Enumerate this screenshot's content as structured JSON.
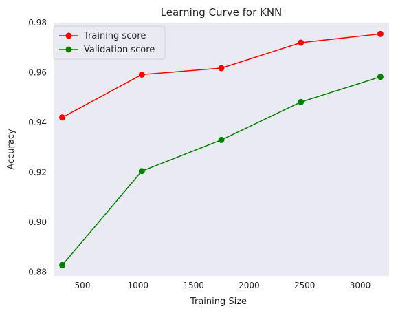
{
  "chart_data": {
    "type": "line",
    "title": "Learning Curve for KNN",
    "xlabel": "Training Size",
    "ylabel": "Accuracy",
    "xlim": [
      240,
      3260
    ],
    "ylim": [
      0.8785,
      0.98
    ],
    "xticks": [
      500,
      1000,
      1500,
      2000,
      2500,
      3000
    ],
    "yticks": [
      0.88,
      0.9,
      0.92,
      0.94,
      0.96,
      0.98
    ],
    "ytick_labels": [
      "0.88",
      "0.90",
      "0.92",
      "0.94",
      "0.96",
      "0.98"
    ],
    "grid": false,
    "legend_position": "upper-left",
    "series": [
      {
        "name": "Training score",
        "color": "#ff0000",
        "marker": "circle",
        "x": [
          318,
          1034,
          1750,
          2466,
          3182
        ],
        "y": [
          0.942,
          0.9592,
          0.9618,
          0.972,
          0.9755
        ]
      },
      {
        "name": "Validation score",
        "color": "#008000",
        "marker": "circle",
        "x": [
          318,
          1034,
          1750,
          2466,
          3182
        ],
        "y": [
          0.8828,
          0.9205,
          0.933,
          0.9482,
          0.9583
        ]
      }
    ]
  },
  "style": {
    "plot_background": "#eaeaf2",
    "text_color": "#262626"
  }
}
